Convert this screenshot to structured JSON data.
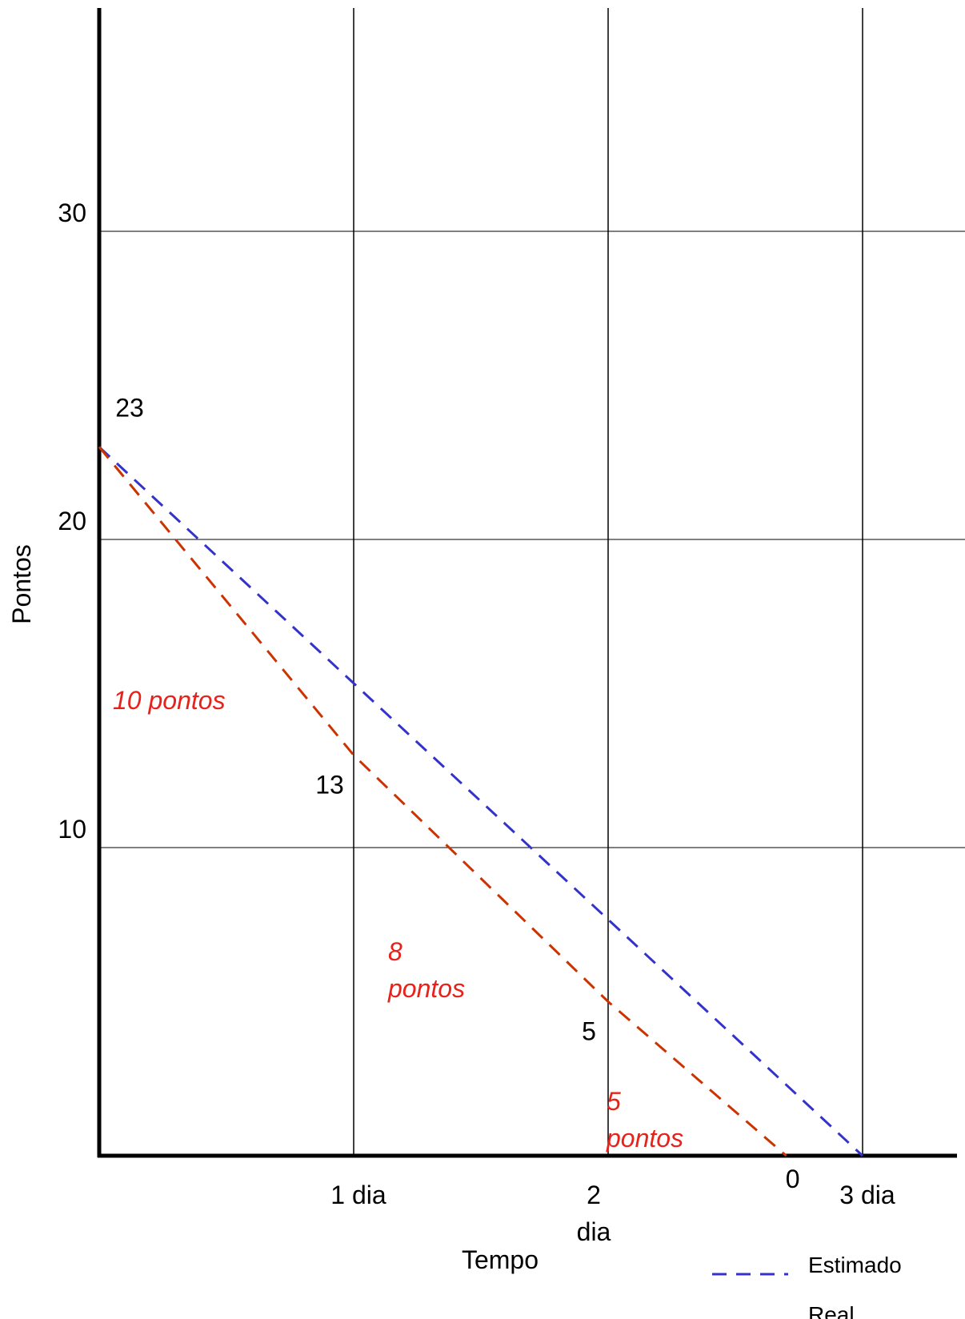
{
  "chart_data": {
    "type": "line",
    "xlabel": "Tempo",
    "ylabel": "Pontos",
    "xlim": [
      0,
      3.2
    ],
    "ylim": [
      0,
      36
    ],
    "grid": true,
    "legend_position": "bottom-right",
    "x_ticks": [
      {
        "value": 1,
        "label": "1 dia"
      },
      {
        "value": 2,
        "label": "2 dia"
      },
      {
        "value": 3,
        "label": "3 dia"
      }
    ],
    "y_ticks": [
      {
        "value": 10,
        "label": "10"
      },
      {
        "value": 20,
        "label": "20"
      },
      {
        "value": 30,
        "label": "30"
      }
    ],
    "series": [
      {
        "name": "Estimado",
        "color": "#3333cc",
        "dash": true,
        "x": [
          0,
          3
        ],
        "y": [
          23,
          0
        ]
      },
      {
        "name": "Real",
        "color": "#cc3300",
        "dash": true,
        "x": [
          0,
          1,
          2,
          2.7
        ],
        "y": [
          23,
          13,
          5,
          0
        ]
      }
    ],
    "point_labels": [
      {
        "x": 0,
        "y": 23,
        "label": "23"
      },
      {
        "x": 1,
        "y": 13,
        "label": "13"
      },
      {
        "x": 2,
        "y": 5,
        "label": "5"
      },
      {
        "x": 2.7,
        "y": 0,
        "label": "0"
      }
    ],
    "annotations": [
      {
        "x": 0.5,
        "y": 18,
        "lines": [
          "10 pontos"
        ]
      },
      {
        "x": 1.5,
        "y": 9,
        "lines": [
          "8",
          "pontos"
        ]
      },
      {
        "x": 2.35,
        "y": 3,
        "lines": [
          "5",
          "pontos"
        ]
      }
    ],
    "annotation_color": "#e8211a"
  }
}
